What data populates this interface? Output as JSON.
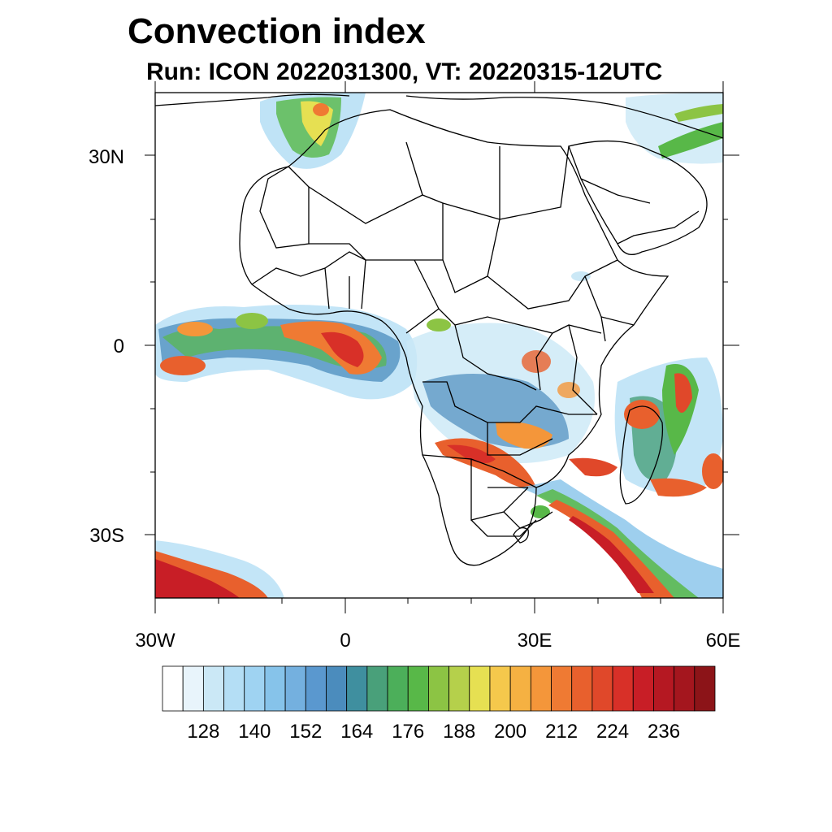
{
  "title": "Convection index",
  "subtitle": "Run: ICON 2022031300,  VT: 20220315-12UTC",
  "axes": {
    "lat_labels": [
      "30N",
      "0",
      "30S"
    ],
    "lon_labels": [
      "30W",
      "0",
      "30E",
      "60E"
    ]
  },
  "colorbar": {
    "labels": [
      "128",
      "140",
      "152",
      "164",
      "176",
      "188",
      "200",
      "212",
      "224",
      "236"
    ],
    "colors": [
      "#ffffff",
      "#e8f4fb",
      "#cbe8f6",
      "#b4def5",
      "#9fd3f2",
      "#86c3ea",
      "#74b0df",
      "#5a98cf",
      "#4b8cbd",
      "#3f8f9f",
      "#49a07a",
      "#4caf5a",
      "#58b848",
      "#8cc444",
      "#b5d04b",
      "#e6e052",
      "#f5c84c",
      "#f5b142",
      "#f4963a",
      "#ef7a33",
      "#e8602d",
      "#e0482a",
      "#d83028",
      "#c81e26",
      "#b51822",
      "#a4161e",
      "#8c1418"
    ]
  },
  "colors": {
    "background": "#ffffff",
    "border": "#000000"
  }
}
